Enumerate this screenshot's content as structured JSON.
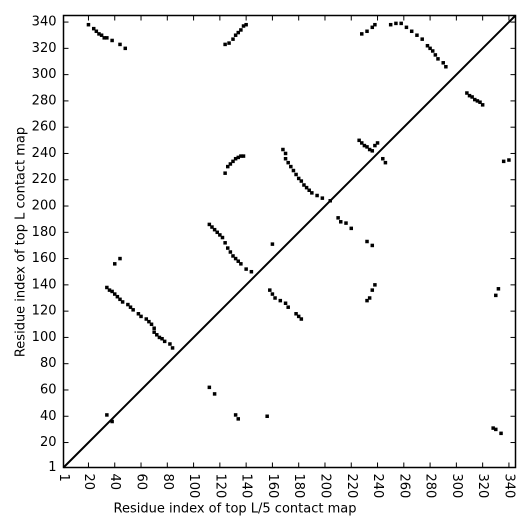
{
  "chart_data": {
    "type": "scatter",
    "x_label": "Residue index of top L/5 contact map",
    "y_label": "Residue index of top L contact map",
    "xlim": [
      1,
      345
    ],
    "ylim": [
      1,
      345
    ],
    "xticks": [
      1,
      20,
      40,
      60,
      80,
      100,
      120,
      140,
      160,
      180,
      200,
      220,
      240,
      260,
      280,
      300,
      320,
      340
    ],
    "yticks": [
      1,
      20,
      40,
      60,
      80,
      100,
      120,
      140,
      160,
      180,
      200,
      220,
      240,
      260,
      280,
      300,
      320,
      340
    ],
    "color": "#000000",
    "x": [
      20,
      24,
      26,
      28,
      30,
      32,
      34,
      38,
      44,
      48,
      124,
      127,
      130,
      132,
      134,
      136,
      138,
      140,
      228,
      232,
      236,
      238,
      250,
      254,
      258,
      262,
      266,
      270,
      274,
      278,
      280,
      282,
      284,
      286,
      290,
      292,
      308,
      310,
      312,
      314,
      316,
      318,
      320,
      226,
      228,
      230,
      232,
      234,
      236,
      238,
      240,
      244,
      246,
      124,
      126,
      128,
      130,
      132,
      134,
      136,
      138,
      168,
      170,
      170,
      172,
      174,
      176,
      178,
      180,
      182,
      184,
      186,
      188,
      190,
      194,
      198,
      204,
      210,
      212,
      216,
      220,
      232,
      236,
      34,
      36,
      38,
      40,
      42,
      44,
      46,
      50,
      52,
      54,
      58,
      60,
      64,
      66,
      68,
      70,
      70,
      72,
      74,
      76,
      78,
      82,
      84,
      40,
      44,
      112,
      114,
      116,
      118,
      120,
      122,
      124,
      126,
      128,
      130,
      132,
      134,
      136,
      140,
      144,
      160,
      158,
      160,
      162,
      166,
      170,
      172,
      178,
      180,
      182,
      232,
      234,
      236,
      238,
      112,
      116,
      132,
      134,
      156,
      34,
      38,
      330,
      332,
      336,
      340,
      328,
      330,
      334
    ],
    "y": [
      338,
      335,
      333,
      331,
      330,
      328,
      328,
      326,
      323,
      320,
      323,
      324,
      327,
      330,
      332,
      334,
      337,
      338,
      331,
      333,
      336,
      338,
      338,
      339,
      339,
      336,
      333,
      330,
      327,
      322,
      320,
      318,
      315,
      312,
      309,
      306,
      286,
      284,
      283,
      281,
      280,
      279,
      277,
      250,
      248,
      246,
      245,
      243,
      242,
      246,
      248,
      236,
      233,
      225,
      230,
      232,
      234,
      236,
      237,
      238,
      238,
      243,
      240,
      236,
      233,
      230,
      227,
      224,
      221,
      219,
      216,
      214,
      212,
      210,
      208,
      206,
      204,
      191,
      188,
      187,
      183,
      173,
      170,
      138,
      136,
      135,
      133,
      131,
      129,
      127,
      125,
      123,
      121,
      118,
      116,
      114,
      112,
      110,
      107,
      104,
      102,
      100,
      99,
      97,
      95,
      92,
      156,
      160,
      186,
      184,
      182,
      180,
      178,
      176,
      172,
      168,
      165,
      162,
      160,
      158,
      156,
      152,
      150,
      171,
      136,
      133,
      130,
      128,
      126,
      123,
      118,
      116,
      114,
      128,
      130,
      136,
      140,
      62,
      57,
      41,
      38,
      40,
      41,
      36,
      132,
      137,
      234,
      235,
      31,
      30,
      27
    ]
  }
}
